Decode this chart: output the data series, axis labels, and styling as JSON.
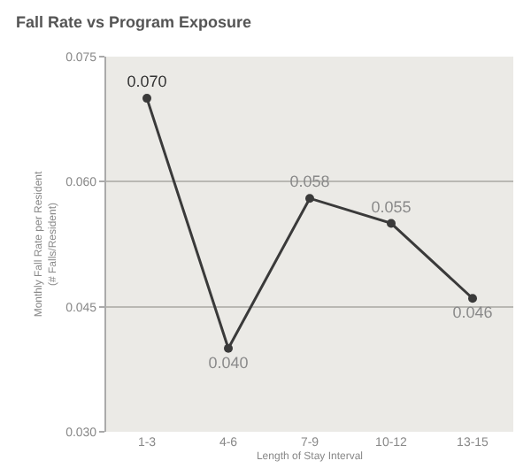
{
  "chart_data": {
    "type": "line",
    "title": "Fall Rate vs Program Exposure",
    "xlabel": "Length of Stay Interval",
    "ylabel": "Monthly Fall Rate per Resident\n(# Falls/Resident)",
    "categories": [
      "1-3",
      "4-6",
      "7-9",
      "10-12",
      "13-15"
    ],
    "series": [
      {
        "color": "#3a3a3a",
        "values": [
          0.07,
          0.04,
          0.058,
          0.055,
          0.046
        ],
        "value_labels": [
          "0.070",
          "0.040",
          "0.058",
          "0.055",
          "0.046"
        ]
      }
    ],
    "ylim": [
      0.03,
      0.075
    ],
    "yticks": [
      {
        "value": 0.03,
        "label": "0.030"
      },
      {
        "value": 0.045,
        "label": "0.045"
      },
      {
        "value": 0.06,
        "label": "0.060"
      },
      {
        "value": 0.075,
        "label": "0.075"
      }
    ],
    "grid": "y",
    "marker": "circle",
    "line_style": "solid",
    "legend": false
  }
}
